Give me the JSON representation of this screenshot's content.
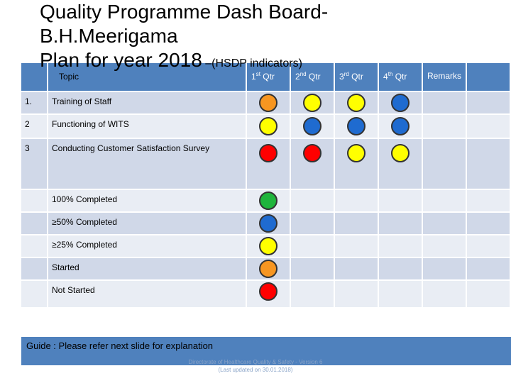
{
  "title": {
    "line1": "Quality Programme Dash Board-",
    "line2": "B.H.Meerigama",
    "line3": "Plan for year 2018",
    "line3_suffix": " –(HSDP indicators)"
  },
  "colors": {
    "header_blue": "#4f81bd",
    "row_light": "#e9edf4",
    "row_dark": "#d0d8e8",
    "status_orange": "#f79621",
    "status_yellow": "#ffff00",
    "status_blue": "#1f6bd0",
    "status_red": "#ff0000",
    "status_green": "#1fb53c"
  },
  "table": {
    "headers": {
      "topic": "Topic",
      "q1": "1",
      "q1_sup": "st",
      "q1_label": " Qtr",
      "q2": "2",
      "q2_sup": "nd",
      "q2_label": " Qtr",
      "q3": "3",
      "q3_sup": "rd",
      "q3_label": " Qtr",
      "q4": "4",
      "q4_sup": "th",
      "q4_label": " Qtr",
      "remarks": "Remarks"
    },
    "rows": [
      {
        "num": "1.",
        "topic": "Training of Staff",
        "status": [
          "orange",
          "yellow",
          "yellow",
          "blue"
        ]
      },
      {
        "num": "2",
        "topic": "Functioning of WITS",
        "status": [
          "yellow",
          "blue",
          "blue",
          "blue"
        ]
      },
      {
        "num": "3",
        "topic": "Conducting Customer Satisfaction Survey",
        "status": [
          "red",
          "red",
          "yellow",
          "yellow"
        ]
      }
    ]
  },
  "legend": [
    {
      "label": "100% Completed",
      "status": "green"
    },
    {
      "label": "≥50% Completed",
      "status": "blue"
    },
    {
      "label": "≥25% Completed",
      "status": "yellow"
    },
    {
      "label": "Started",
      "status": "orange"
    },
    {
      "label": "Not Started",
      "status": "red"
    }
  ],
  "footer": {
    "guide": "Guide : Please refer next slide for explanation",
    "credit_line1": "Directorate of Healthcare Quality & Safety - Version 6",
    "credit_line2": "(Last updated on 30.01.2018)"
  }
}
